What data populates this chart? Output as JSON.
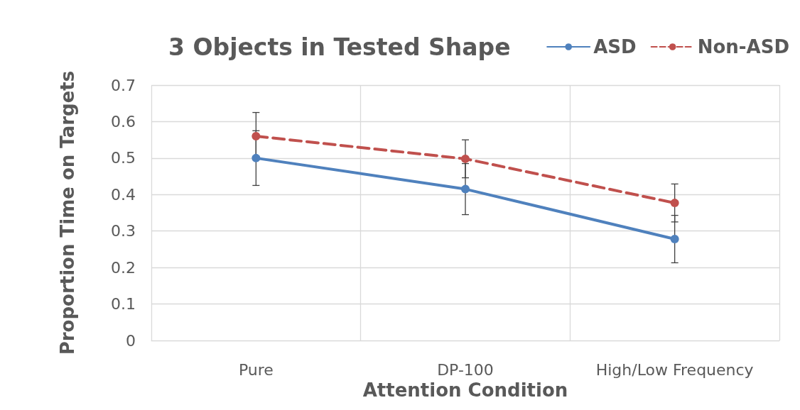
{
  "chart_data": {
    "type": "line",
    "title": "3 Objects in Tested Shape",
    "xlabel": "Attention Condition",
    "ylabel": "Proportion Time on Targets",
    "categories": [
      "Pure",
      "DP-100",
      "High/Low Frequency"
    ],
    "series": [
      {
        "name": "ASD",
        "color": "#4f81bd",
        "values": [
          0.5,
          0.415,
          0.278
        ],
        "errors": [
          0.075,
          0.07,
          0.065
        ],
        "line_style": "solid"
      },
      {
        "name": "Non-ASD",
        "color": "#c0504d",
        "values": [
          0.56,
          0.498,
          0.377
        ],
        "errors": [
          0.065,
          0.052,
          0.052
        ],
        "line_style": "dashed"
      }
    ],
    "ylim": [
      0,
      0.7
    ],
    "yticks": [
      0,
      0.1,
      0.2,
      0.3,
      0.4,
      0.5,
      0.6,
      0.7
    ],
    "grid": true,
    "legend": "top right",
    "marker": "circle"
  }
}
